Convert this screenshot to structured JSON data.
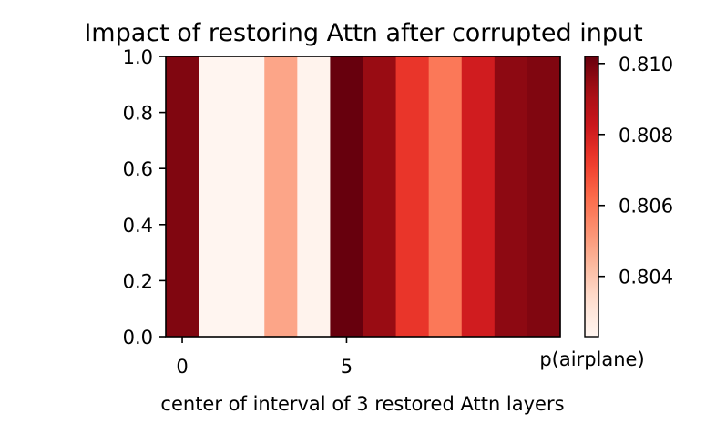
{
  "chart_data": {
    "type": "heatmap",
    "title": "Impact of restoring Attn after corrupted input",
    "xlabel": "center of interval of 3 restored Attn layers",
    "ylabel": "",
    "xlim": [
      -0.5,
      11.5
    ],
    "ylim": [
      0.0,
      1.0
    ],
    "x_ticks": [
      0,
      5
    ],
    "y_ticks": [
      0.0,
      0.2,
      0.4,
      0.6,
      0.8,
      1.0
    ],
    "x_tick_labels": [
      "0",
      "5"
    ],
    "y_tick_labels": [
      "0.0",
      "0.2",
      "0.4",
      "0.6",
      "0.8",
      "1.0"
    ],
    "colormap": "Reds",
    "colorbar": {
      "label": "p(airplane)",
      "vmin": 0.8023,
      "vmax": 0.8102,
      "ticks": [
        0.804,
        0.806,
        0.808,
        0.81
      ],
      "tick_labels": [
        "0.804",
        "0.806",
        "0.808",
        "0.810"
      ]
    },
    "columns": [
      0,
      1,
      2,
      3,
      4,
      5,
      6,
      7,
      8,
      9,
      10,
      11
    ],
    "values": [
      0.8098,
      0.8023,
      0.8023,
      0.8048,
      0.8024,
      0.8102,
      0.8094,
      0.8074,
      0.8059,
      0.8081,
      0.8096,
      0.8098
    ],
    "grid": false
  }
}
